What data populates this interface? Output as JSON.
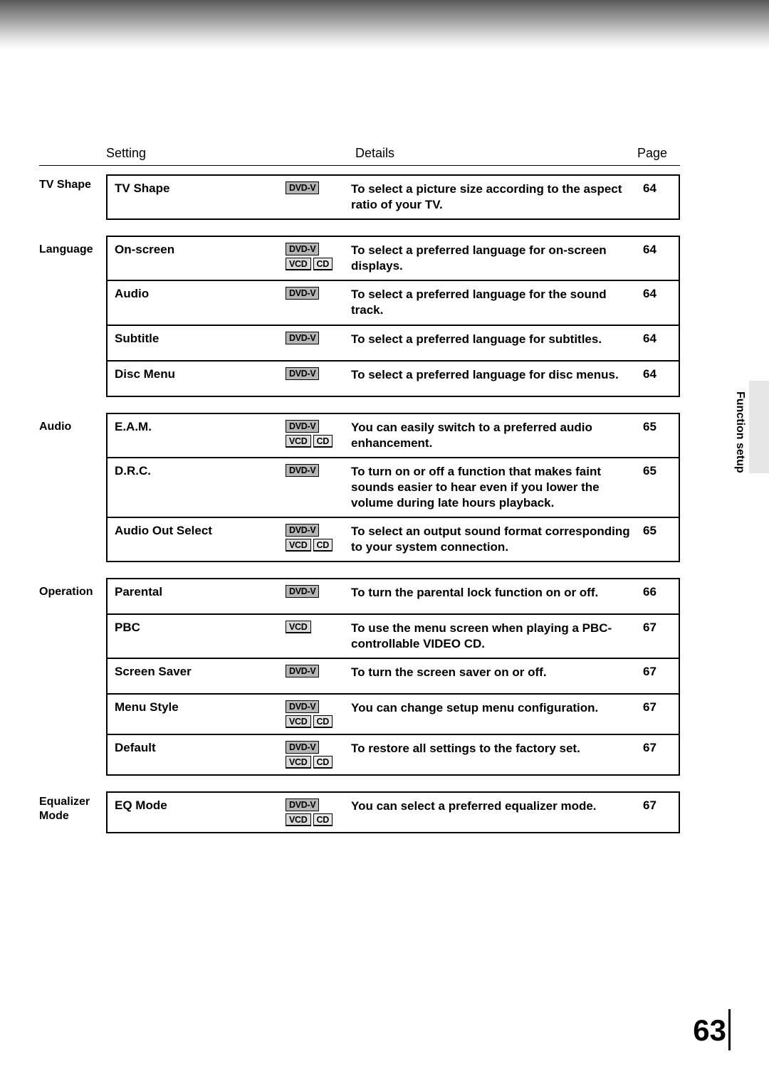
{
  "page_number": "63",
  "side_label": "Function setup",
  "headers": {
    "setting": "Setting",
    "details": "Details",
    "page": "Page"
  },
  "badges": {
    "dvdv": "DVD-V",
    "vcd": "VCD",
    "cd": "CD"
  },
  "sections": [
    {
      "label": "TV Shape",
      "rows": [
        {
          "setting": "TV Shape",
          "badges": [
            "dvdv"
          ],
          "details": "To select a picture size according to the aspect ratio of your TV.",
          "page": "64"
        }
      ]
    },
    {
      "label": "Language",
      "rows": [
        {
          "setting": "On-screen",
          "badges": [
            "dvdv",
            "vcd",
            "cd"
          ],
          "details": "To select a preferred language for on-screen displays.",
          "page": "64"
        },
        {
          "setting": "Audio",
          "badges": [
            "dvdv"
          ],
          "details": "To select a preferred language for the sound track.",
          "page": "64"
        },
        {
          "setting": "Subtitle",
          "badges": [
            "dvdv"
          ],
          "details": "To select a preferred language for subtitles.",
          "page": "64"
        },
        {
          "setting": "Disc Menu",
          "badges": [
            "dvdv"
          ],
          "details": "To select a preferred language for disc menus.",
          "page": "64"
        }
      ]
    },
    {
      "label": "Audio",
      "rows": [
        {
          "setting": "E.A.M.",
          "badges": [
            "dvdv",
            "vcd",
            "cd"
          ],
          "details": "You can easily switch to a preferred audio enhancement.",
          "page": "65"
        },
        {
          "setting": "D.R.C.",
          "badges": [
            "dvdv"
          ],
          "details": "To turn on or off a function that makes faint sounds easier to hear even if you lower the volume during late hours playback.",
          "page": "65"
        },
        {
          "setting": "Audio Out Select",
          "badges": [
            "dvdv",
            "vcd",
            "cd"
          ],
          "details": "To select an output sound format corresponding to your system connection.",
          "page": "65"
        }
      ]
    },
    {
      "label": "Operation",
      "rows": [
        {
          "setting": "Parental",
          "badges": [
            "dvdv"
          ],
          "details": "To turn the parental lock function on or off.",
          "page": "66"
        },
        {
          "setting": "PBC",
          "badges": [
            "vcd"
          ],
          "details": "To use the menu screen when playing a PBC-controllable VIDEO CD.",
          "page": "67"
        },
        {
          "setting": "Screen Saver",
          "badges": [
            "dvdv"
          ],
          "details": "To turn the screen saver on or off.",
          "page": "67"
        },
        {
          "setting": "Menu Style",
          "badges": [
            "dvdv",
            "vcd",
            "cd"
          ],
          "details": "You can change setup menu configuration.",
          "page": "67"
        },
        {
          "setting": "Default",
          "badges": [
            "dvdv",
            "vcd",
            "cd"
          ],
          "details": "To restore all settings to the factory set.",
          "page": "67"
        }
      ]
    },
    {
      "label": "Equalizer Mode",
      "rows": [
        {
          "setting": "EQ Mode",
          "badges": [
            "dvdv",
            "vcd",
            "cd"
          ],
          "details": "You can select a preferred equalizer mode.",
          "page": "67"
        }
      ]
    }
  ]
}
